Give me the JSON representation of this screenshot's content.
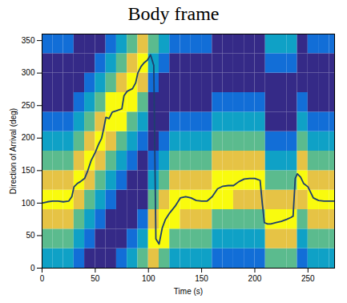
{
  "chart_data": {
    "type": "heatmap",
    "title": "Body frame",
    "xlabel": "Time (s)",
    "ylabel": "Direction of Arrival (deg)",
    "xlim": [
      0,
      275
    ],
    "ylim": [
      0,
      360
    ],
    "xticks": [
      0,
      50,
      100,
      150,
      200,
      250
    ],
    "yticks": [
      0,
      50,
      100,
      150,
      200,
      250,
      300,
      350
    ],
    "cells": {
      "x_edges": [
        0,
        10,
        20,
        30,
        40,
        50,
        60,
        70,
        80,
        90,
        100,
        110,
        120,
        130,
        140,
        150,
        160,
        170,
        180,
        190,
        200,
        210,
        220,
        230,
        240,
        250,
        260,
        270,
        275
      ],
      "y_edges": [
        0,
        30,
        60,
        90,
        120,
        150,
        180,
        210,
        240,
        270,
        300,
        330,
        360
      ],
      "values": [
        [
          0.45,
          0.6,
          0.8,
          0.95,
          0.8,
          0.6,
          0.45,
          0.3,
          0.15,
          0.15,
          0.15,
          0.3
        ],
        [
          0.45,
          0.6,
          0.8,
          0.95,
          0.8,
          0.6,
          0.45,
          0.3,
          0.15,
          0.15,
          0.15,
          0.3
        ],
        [
          0.45,
          0.6,
          0.8,
          0.95,
          0.8,
          0.6,
          0.45,
          0.3,
          0.15,
          0.15,
          0.15,
          0.3
        ],
        [
          0.3,
          0.45,
          0.6,
          0.8,
          0.95,
          0.8,
          0.6,
          0.45,
          0.3,
          0.15,
          0.15,
          0.15
        ],
        [
          0.15,
          0.3,
          0.45,
          0.6,
          0.8,
          0.95,
          0.8,
          0.6,
          0.45,
          0.3,
          0.15,
          0.15
        ],
        [
          0.15,
          0.15,
          0.3,
          0.45,
          0.6,
          0.8,
          0.95,
          0.8,
          0.6,
          0.45,
          0.3,
          0.15
        ],
        [
          0.15,
          0.15,
          0.15,
          0.3,
          0.45,
          0.6,
          0.8,
          0.95,
          0.95,
          0.6,
          0.45,
          0.3
        ],
        [
          0.3,
          0.15,
          0.15,
          0.15,
          0.3,
          0.45,
          0.6,
          0.95,
          0.95,
          0.8,
          0.6,
          0.45
        ],
        [
          0.45,
          0.3,
          0.15,
          0.15,
          0.15,
          0.3,
          0.45,
          0.6,
          0.95,
          0.95,
          0.8,
          0.6
        ],
        [
          0.6,
          0.45,
          0.3,
          0.15,
          0.15,
          0.15,
          0.3,
          0.45,
          0.6,
          0.8,
          0.95,
          0.8
        ],
        [
          0.8,
          0.95,
          0.8,
          0.6,
          0.45,
          0.3,
          0.15,
          0.15,
          0.15,
          0.3,
          0.45,
          0.6
        ],
        [
          0.6,
          0.95,
          0.95,
          0.8,
          0.6,
          0.45,
          0.3,
          0.15,
          0.15,
          0.15,
          0.3,
          0.45
        ],
        [
          0.45,
          0.6,
          0.95,
          0.95,
          0.8,
          0.6,
          0.45,
          0.3,
          0.15,
          0.15,
          0.15,
          0.3
        ],
        [
          0.45,
          0.6,
          0.8,
          0.95,
          0.8,
          0.6,
          0.45,
          0.3,
          0.15,
          0.15,
          0.15,
          0.3
        ],
        [
          0.45,
          0.6,
          0.8,
          0.95,
          0.8,
          0.6,
          0.45,
          0.3,
          0.15,
          0.15,
          0.15,
          0.3
        ],
        [
          0.45,
          0.6,
          0.8,
          0.95,
          0.8,
          0.6,
          0.45,
          0.3,
          0.15,
          0.15,
          0.15,
          0.3
        ],
        [
          0.3,
          0.45,
          0.6,
          0.95,
          0.95,
          0.8,
          0.6,
          0.45,
          0.3,
          0.15,
          0.15,
          0.15
        ],
        [
          0.3,
          0.45,
          0.6,
          0.95,
          0.95,
          0.8,
          0.6,
          0.45,
          0.3,
          0.15,
          0.15,
          0.15
        ],
        [
          0.3,
          0.45,
          0.6,
          0.8,
          0.95,
          0.8,
          0.6,
          0.45,
          0.3,
          0.15,
          0.15,
          0.15
        ],
        [
          0.3,
          0.45,
          0.6,
          0.8,
          0.95,
          0.8,
          0.6,
          0.45,
          0.3,
          0.15,
          0.15,
          0.15
        ],
        [
          0.3,
          0.45,
          0.6,
          0.8,
          0.95,
          0.8,
          0.6,
          0.45,
          0.3,
          0.15,
          0.15,
          0.15
        ],
        [
          0.6,
          0.8,
          0.95,
          0.8,
          0.6,
          0.45,
          0.3,
          0.15,
          0.15,
          0.15,
          0.3,
          0.45
        ],
        [
          0.6,
          0.8,
          0.95,
          0.8,
          0.6,
          0.45,
          0.3,
          0.15,
          0.15,
          0.15,
          0.3,
          0.45
        ],
        [
          0.6,
          0.8,
          0.95,
          0.8,
          0.6,
          0.45,
          0.3,
          0.15,
          0.15,
          0.15,
          0.3,
          0.45
        ],
        [
          0.3,
          0.45,
          0.6,
          0.8,
          0.95,
          0.8,
          0.6,
          0.45,
          0.3,
          0.15,
          0.15,
          0.15
        ],
        [
          0.45,
          0.6,
          0.8,
          0.95,
          0.8,
          0.6,
          0.45,
          0.3,
          0.15,
          0.15,
          0.15,
          0.3
        ],
        [
          0.45,
          0.6,
          0.8,
          0.95,
          0.8,
          0.6,
          0.45,
          0.3,
          0.15,
          0.15,
          0.15,
          0.3
        ],
        [
          0.45,
          0.6,
          0.8,
          0.95,
          0.8,
          0.6,
          0.45,
          0.3,
          0.15,
          0.15,
          0.15,
          0.3
        ]
      ]
    },
    "series": [
      {
        "type": "line",
        "color": "#1d3f6e",
        "x": [
          0,
          5,
          10,
          15,
          20,
          25,
          28,
          30,
          33,
          36,
          40,
          43,
          46,
          50,
          53,
          56,
          58,
          60,
          63,
          66,
          70,
          75,
          77,
          80,
          85,
          88,
          90,
          93,
          96,
          99,
          102,
          105,
          107,
          110,
          113,
          116,
          120,
          125,
          130,
          135,
          140,
          145,
          150,
          155,
          160,
          165,
          170,
          175,
          180,
          185,
          190,
          195,
          200,
          205,
          207,
          209,
          212,
          215,
          220,
          225,
          230,
          234,
          236,
          238,
          240,
          243,
          246,
          250,
          255,
          260,
          265,
          270,
          275
        ],
        "values": [
          100,
          102,
          103,
          103,
          102,
          103,
          110,
          125,
          130,
          133,
          138,
          150,
          165,
          178,
          190,
          200,
          215,
          232,
          230,
          240,
          242,
          245,
          265,
          272,
          276,
          285,
          300,
          310,
          316,
          320,
          328,
          312,
          45,
          37,
          62,
          75,
          85,
          95,
          108,
          110,
          108,
          104,
          103,
          103,
          110,
          122,
          126,
          127,
          127,
          133,
          137,
          138,
          138,
          135,
          100,
          70,
          68,
          68,
          70,
          72,
          75,
          78,
          80,
          138,
          145,
          140,
          130,
          125,
          108,
          104,
          103,
          103,
          103
        ]
      }
    ]
  }
}
